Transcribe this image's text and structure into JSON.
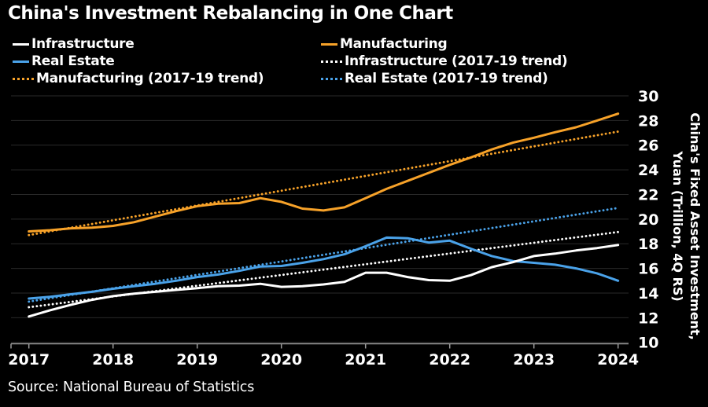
{
  "title": "China's Investment Rebalancing in One Chart",
  "source": "Source: National Bureau of Statistics",
  "colors": {
    "background": "#000000",
    "text": "#ffffff",
    "grid": "#2a2a2a",
    "axis": "#9b9b9b",
    "infrastructure": "#ffffff",
    "manufacturing": "#f7a229",
    "real_estate": "#4aa2e9"
  },
  "legend": {
    "items": [
      {
        "key": "infrastructure",
        "label": "Infrastructure",
        "style": "solid",
        "color_key": "infrastructure"
      },
      {
        "key": "manufacturing",
        "label": "Manufacturing",
        "style": "solid",
        "color_key": "manufacturing"
      },
      {
        "key": "real-estate",
        "label": "Real Estate",
        "style": "solid",
        "color_key": "real_estate"
      },
      {
        "key": "infrastructure-trend",
        "label": "Infrastructure (2017-19 trend)",
        "style": "dotted",
        "color_key": "infrastructure"
      },
      {
        "key": "manufacturing-trend",
        "label": "Manufacturing (2017-19 trend)",
        "style": "dotted",
        "color_key": "manufacturing"
      },
      {
        "key": "real-estate-trend",
        "label": "Real Estate (2017-19 trend)",
        "style": "dotted",
        "color_key": "real_estate"
      }
    ]
  },
  "chart_data": {
    "type": "line",
    "title": "China's Investment Rebalancing in One Chart",
    "ylabel_lines": [
      "China's Fixed Asset Investment,",
      "Yuan (Trillion, 4Q RS)"
    ],
    "xlim": [
      2017,
      2024
    ],
    "ylim": [
      10,
      30
    ],
    "x_ticks": [
      2017,
      2018,
      2019,
      2020,
      2021,
      2022,
      2023,
      2024
    ],
    "y_ticks": [
      10,
      12,
      14,
      16,
      18,
      20,
      22,
      24,
      26,
      28,
      30
    ],
    "grid": "horizontal",
    "legend_position": "top",
    "x": [
      2017.0,
      2017.25,
      2017.5,
      2017.75,
      2018.0,
      2018.25,
      2018.5,
      2018.75,
      2019.0,
      2019.25,
      2019.5,
      2019.75,
      2020.0,
      2020.25,
      2020.5,
      2020.75,
      2021.0,
      2021.25,
      2021.5,
      2021.75,
      2022.0,
      2022.25,
      2022.5,
      2022.75,
      2023.0,
      2023.25,
      2023.5,
      2023.75,
      2024.0
    ],
    "series": [
      {
        "key": "manufacturing-trend",
        "name": "Manufacturing (2017-19 trend)",
        "style": "dotted",
        "color_key": "manufacturing",
        "x": [
          2017.0,
          2024.0
        ],
        "values": [
          18.7,
          27.1
        ]
      },
      {
        "key": "infrastructure-trend",
        "name": "Infrastructure (2017-19 trend)",
        "style": "dotted",
        "color_key": "infrastructure",
        "x": [
          2017.0,
          2024.0
        ],
        "values": [
          12.85,
          18.95
        ]
      },
      {
        "key": "real-estate-trend",
        "name": "Real Estate (2017-19 trend)",
        "style": "dotted",
        "color_key": "real_estate",
        "x": [
          2017.0,
          2024.0
        ],
        "values": [
          13.3,
          20.9
        ]
      },
      {
        "key": "manufacturing",
        "name": "Manufacturing",
        "style": "solid",
        "color_key": "manufacturing",
        "values": [
          19.0,
          19.1,
          19.25,
          19.3,
          19.45,
          19.75,
          20.2,
          20.65,
          21.05,
          21.25,
          21.3,
          21.7,
          21.4,
          20.85,
          20.7,
          20.95,
          21.7,
          22.45,
          23.1,
          23.75,
          24.4,
          25.0,
          25.65,
          26.2,
          26.6,
          27.05,
          27.45,
          28.0,
          28.55
        ]
      },
      {
        "key": "real-estate",
        "name": "Real Estate",
        "style": "solid",
        "color_key": "real_estate",
        "values": [
          13.55,
          13.7,
          13.9,
          14.1,
          14.35,
          14.55,
          14.75,
          15.0,
          15.3,
          15.5,
          15.8,
          16.15,
          16.2,
          16.45,
          16.75,
          17.15,
          17.8,
          18.5,
          18.45,
          18.1,
          18.25,
          17.6,
          17.0,
          16.6,
          16.45,
          16.3,
          16.0,
          15.6,
          15.0
        ]
      },
      {
        "key": "infrastructure",
        "name": "Infrastructure",
        "style": "solid",
        "color_key": "infrastructure",
        "values": [
          12.1,
          12.6,
          13.05,
          13.45,
          13.75,
          13.95,
          14.1,
          14.25,
          14.4,
          14.55,
          14.6,
          14.75,
          14.5,
          14.55,
          14.7,
          14.9,
          15.65,
          15.65,
          15.3,
          15.05,
          15.0,
          15.45,
          16.1,
          16.5,
          17.0,
          17.2,
          17.45,
          17.65,
          17.9
        ]
      }
    ]
  }
}
